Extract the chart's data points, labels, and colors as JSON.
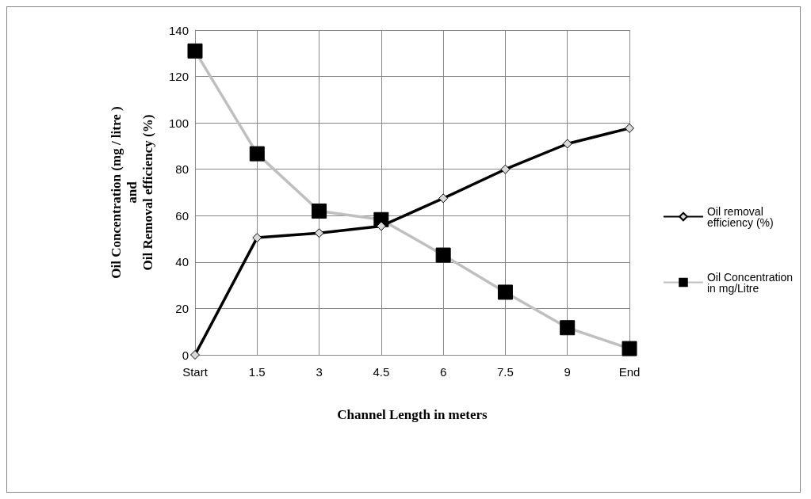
{
  "chart_data": {
    "type": "line",
    "xlabel": "Channel Length in meters",
    "ylabel": "Oil Concentration (mg / litre )\nand\nOil Removal efficiency (%)",
    "categories": [
      "Start",
      "1.5",
      "3",
      "4.5",
      "6",
      "7.5",
      "9",
      "End"
    ],
    "series": [
      {
        "name": "Oil removal efficiency (%)",
        "color": "#000000",
        "marker": "diamond",
        "values": [
          0,
          50.5,
          52.5,
          55.5,
          67.5,
          80,
          91,
          97.7
        ]
      },
      {
        "name": "Oil Concentration in mg/Litre",
        "color": "#bfbfbf",
        "marker": "square",
        "values": [
          131,
          86.7,
          62,
          58.3,
          43,
          27,
          11.7,
          2.7
        ]
      }
    ],
    "ylim": [
      0,
      140
    ],
    "yticks": [
      0,
      20,
      40,
      60,
      80,
      100,
      120,
      140
    ],
    "grid": true,
    "legend": "right",
    "line_style": "solid"
  }
}
